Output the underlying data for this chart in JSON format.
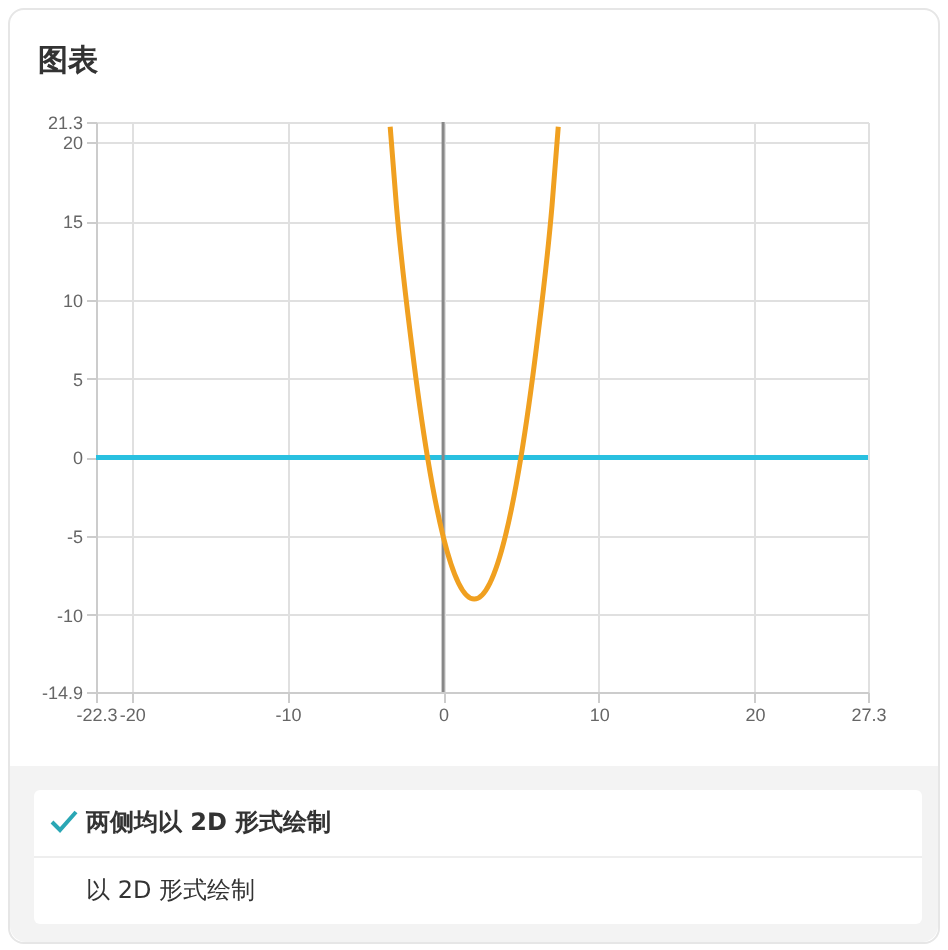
{
  "chart_data": {
    "type": "line",
    "title": "图表",
    "series": [
      {
        "color": "#29c0e0",
        "x": [
          -22.3,
          27.3
        ],
        "values": [
          0,
          0
        ]
      },
      {
        "color": "#f0a020",
        "x": [
          -3.4,
          -3,
          -2,
          -1,
          0,
          1,
          2,
          3,
          4,
          5,
          6,
          7,
          7.4
        ],
        "values": [
          21,
          16,
          7,
          0,
          -5,
          -8,
          -9,
          -8,
          -5,
          0,
          7,
          16,
          21
        ]
      }
    ],
    "xlim": [
      -22.3,
      27.3
    ],
    "xticks": [
      -22.3,
      -20,
      -10,
      0,
      10,
      20,
      27.3
    ],
    "ylim": [
      -14.9,
      21.3
    ],
    "yticks": [
      -14.9,
      -10,
      -5,
      0,
      5,
      10,
      15,
      20,
      21.3
    ],
    "grid": true,
    "marker": "none",
    "line_style": "solid",
    "ref_lines": [
      {
        "axis": "x",
        "value": 0,
        "color": "#888888"
      }
    ],
    "annotations": [
      "两侧均以 2D 形式绘制",
      "以 2D 形式绘制"
    ]
  }
}
